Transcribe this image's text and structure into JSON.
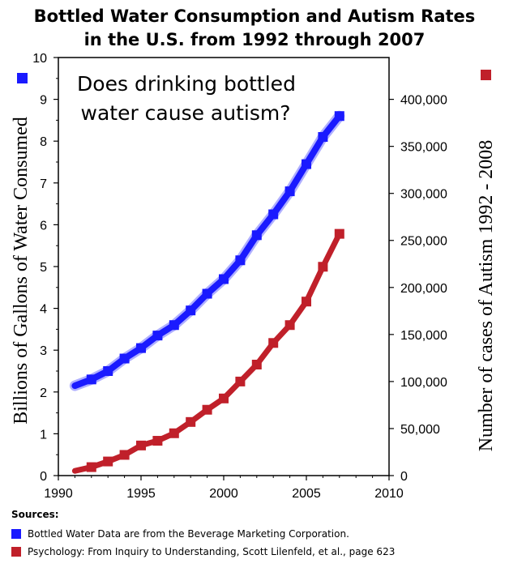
{
  "chart_data": {
    "type": "line",
    "title": [
      "Bottled Water Consumption and Autism Rates",
      "in the U.S. from 1992 through 2007"
    ],
    "annotation": [
      "Does drinking bottled",
      "water cause autism?"
    ],
    "xlim": [
      1990,
      2010
    ],
    "xticks": [
      "1990",
      "1995",
      "2000",
      "2005",
      "2010"
    ],
    "y_left": {
      "label": "Billions of Gallons of Water Consumed",
      "lim": [
        0,
        10
      ],
      "ticks": [
        "0",
        "1",
        "2",
        "3",
        "4",
        "5",
        "6",
        "7",
        "8",
        "9",
        "10"
      ]
    },
    "y_right": {
      "label": "Number of cases of Autism 1992 - 2008",
      "lim": [
        0,
        444444
      ],
      "tick_values": [
        0,
        50000,
        100000,
        150000,
        200000,
        250000,
        300000,
        350000,
        400000
      ],
      "ticks": [
        "0",
        "50,000",
        "100,000",
        "150,000",
        "200,000",
        "250,000",
        "300,000",
        "350,000",
        "400,000"
      ]
    },
    "series": [
      {
        "axis": "left",
        "color": "#1a1aff",
        "x": [
          1992,
          1993,
          1994,
          1995,
          1996,
          1997,
          1998,
          1999,
          2000,
          2001,
          2002,
          2003,
          2004,
          2005,
          2006,
          2007
        ],
        "values": [
          2.3,
          2.5,
          2.8,
          3.05,
          3.35,
          3.6,
          3.95,
          4.35,
          4.7,
          5.15,
          5.75,
          6.25,
          6.8,
          7.45,
          8.1,
          8.6
        ],
        "line_start": [
          1991,
          2.15
        ]
      },
      {
        "axis": "right",
        "color": "#c0202a",
        "x": [
          1992,
          1993,
          1994,
          1995,
          1996,
          1997,
          1998,
          1999,
          2000,
          2001,
          2002,
          2003,
          2004,
          2005,
          2006,
          2007
        ],
        "values": [
          9000,
          15000,
          22000,
          32000,
          37000,
          45000,
          57000,
          70000,
          82000,
          100000,
          118000,
          141000,
          160000,
          185000,
          222000,
          257000
        ],
        "line_start": [
          1991,
          5000
        ]
      }
    ]
  },
  "sources": {
    "header": "Sources:",
    "items": [
      {
        "color": "#1a1aff",
        "text": "Bottled Water Data are from the Beverage Marketing Corporation."
      },
      {
        "color": "#c0202a",
        "text": "Psychology: From Inquiry to Understanding, Scott Lilenfeld, et al., page 623"
      }
    ]
  }
}
